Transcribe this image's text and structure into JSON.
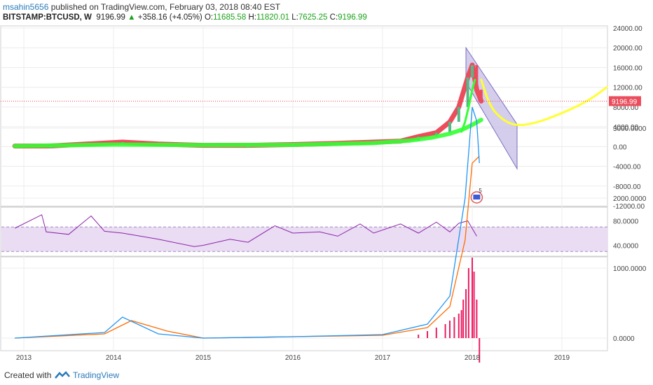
{
  "header": {
    "user": "msahin5656",
    "published": " published on TradingView.com, February 03, 2018 08:40 EST",
    "symbol": "BITSTAMP:BTCUSD, W",
    "price": "9196.99",
    "up_arrow": "▲",
    "change": "+358.16 (+4.05%)",
    "o_label": "O:",
    "o": "11685.58",
    "h_label": "H:",
    "h": "11820.01",
    "l_label": "L:",
    "l": "7625.25",
    "c_label": "C:",
    "c": "9196.99"
  },
  "footer": {
    "created": "Created with",
    "brand": "TradingView"
  },
  "colors": {
    "bull": "#53b987",
    "bear": "#eb4d5c",
    "ma": "#33ff33",
    "forecast": "#ffff33",
    "rsi": "#8e24aa",
    "rsi_band": "#e9dcf3",
    "macd": "#2196f3",
    "signal": "#ff6d00",
    "hist": "#e91e63",
    "channel": "#c5bde6"
  },
  "chart_data": [
    {
      "type": "line",
      "pane": "price",
      "ylim": [
        -12000,
        24000
      ],
      "y_ticks": [
        "24000.00",
        "20000.00",
        "16000.00",
        "12000.00",
        "8000.00",
        "4000.00",
        "0.00",
        "-4000.00",
        "-8000.00",
        "-12000.00"
      ],
      "last_price_label": "9196.99",
      "last_price": 9196.99,
      "badge": "5",
      "x_ticks": [
        "2013",
        "2014",
        "2015",
        "2016",
        "2017",
        "2018",
        "2019"
      ],
      "series": [
        {
          "x": [
            2012.9,
            2013.3,
            2013.9,
            2014.1,
            2014.5,
            2015.0,
            2015.5,
            2016.0,
            2016.5,
            2016.9,
            2017.2,
            2017.4,
            2017.6,
            2017.75,
            2017.85,
            2017.95,
            2018.0,
            2018.05,
            2018.1
          ],
          "y": [
            100,
            120,
            700,
            900,
            500,
            250,
            250,
            400,
            650,
            900,
            1100,
            2000,
            2800,
            5000,
            8000,
            14000,
            16500,
            11500,
            9197
          ]
        },
        {
          "x": [
            2012.9,
            2014.0,
            2015.0,
            2016.0,
            2016.9,
            2017.3,
            2017.55,
            2017.75,
            2017.9,
            2018.0,
            2018.1
          ],
          "y": [
            100,
            400,
            300,
            350,
            700,
            1200,
            1800,
            2600,
            3500,
            4400,
            5400
          ]
        },
        {
          "x": [
            2017.88,
            2017.92,
            2017.96,
            2018.0,
            2018.03
          ],
          "y": [
            3000,
            5000,
            8000,
            11500,
            13500
          ]
        },
        {
          "x": [
            2018.1,
            2018.2,
            2018.35,
            2018.5,
            2018.7,
            2019.0,
            2019.3,
            2019.5
          ],
          "y": [
            13500,
            8000,
            5200,
            4200,
            4700,
            6700,
            9300,
            12000
          ]
        }
      ],
      "channel": {
        "x": [
          2017.93,
          2018.5
        ],
        "upper": [
          20000,
          4500
        ],
        "lower": [
          13000,
          -4500
        ]
      }
    },
    {
      "type": "line",
      "pane": "rsi",
      "y_ticks": [
        "80.0000",
        "40.0000"
      ],
      "band": [
        70,
        30
      ],
      "x": [
        2012.9,
        2013.2,
        2013.25,
        2013.5,
        2013.75,
        2013.9,
        2014.1,
        2014.5,
        2014.9,
        2015.0,
        2015.3,
        2015.5,
        2015.8,
        2016.0,
        2016.3,
        2016.5,
        2016.75,
        2016.9,
        2017.2,
        2017.4,
        2017.6,
        2017.75,
        2017.85,
        2017.95,
        2018.05
      ],
      "y": [
        68,
        90,
        62,
        58,
        88,
        63,
        60,
        50,
        38,
        40,
        50,
        45,
        72,
        60,
        62,
        55,
        75,
        60,
        75,
        60,
        78,
        62,
        76,
        80,
        55
      ]
    },
    {
      "type": "bar",
      "pane": "macd",
      "y_ticks": [
        "3000.0000",
        "2000.0000",
        "1000.0000",
        "0.0000"
      ],
      "series": [
        {
          "x": [
            2012.9,
            2013.9,
            2014.1,
            2014.5,
            2015.0,
            2016.0,
            2017.0,
            2017.5,
            2017.75,
            2017.92,
            2018.0,
            2018.05,
            2018.08
          ],
          "y": [
            0,
            80,
            300,
            60,
            0,
            20,
            50,
            200,
            600,
            2000,
            3300,
            3100,
            2500
          ]
        },
        {
          "x": [
            2012.9,
            2013.9,
            2014.2,
            2014.6,
            2015.0,
            2016.0,
            2017.0,
            2017.5,
            2017.75,
            2017.92,
            2018.0,
            2018.08
          ],
          "y": [
            0,
            60,
            250,
            100,
            0,
            20,
            40,
            150,
            450,
            1400,
            2500,
            2600
          ]
        }
      ],
      "histogram": {
        "x": [
          2017.4,
          2017.5,
          2017.6,
          2017.7,
          2017.75,
          2017.8,
          2017.85,
          2017.88,
          2017.9,
          2017.93,
          2017.96,
          2018.0,
          2018.02,
          2018.05,
          2018.08
        ],
        "y": [
          50,
          100,
          150,
          200,
          250,
          300,
          350,
          400,
          550,
          700,
          1000,
          1150,
          950,
          550,
          -350
        ]
      }
    }
  ]
}
